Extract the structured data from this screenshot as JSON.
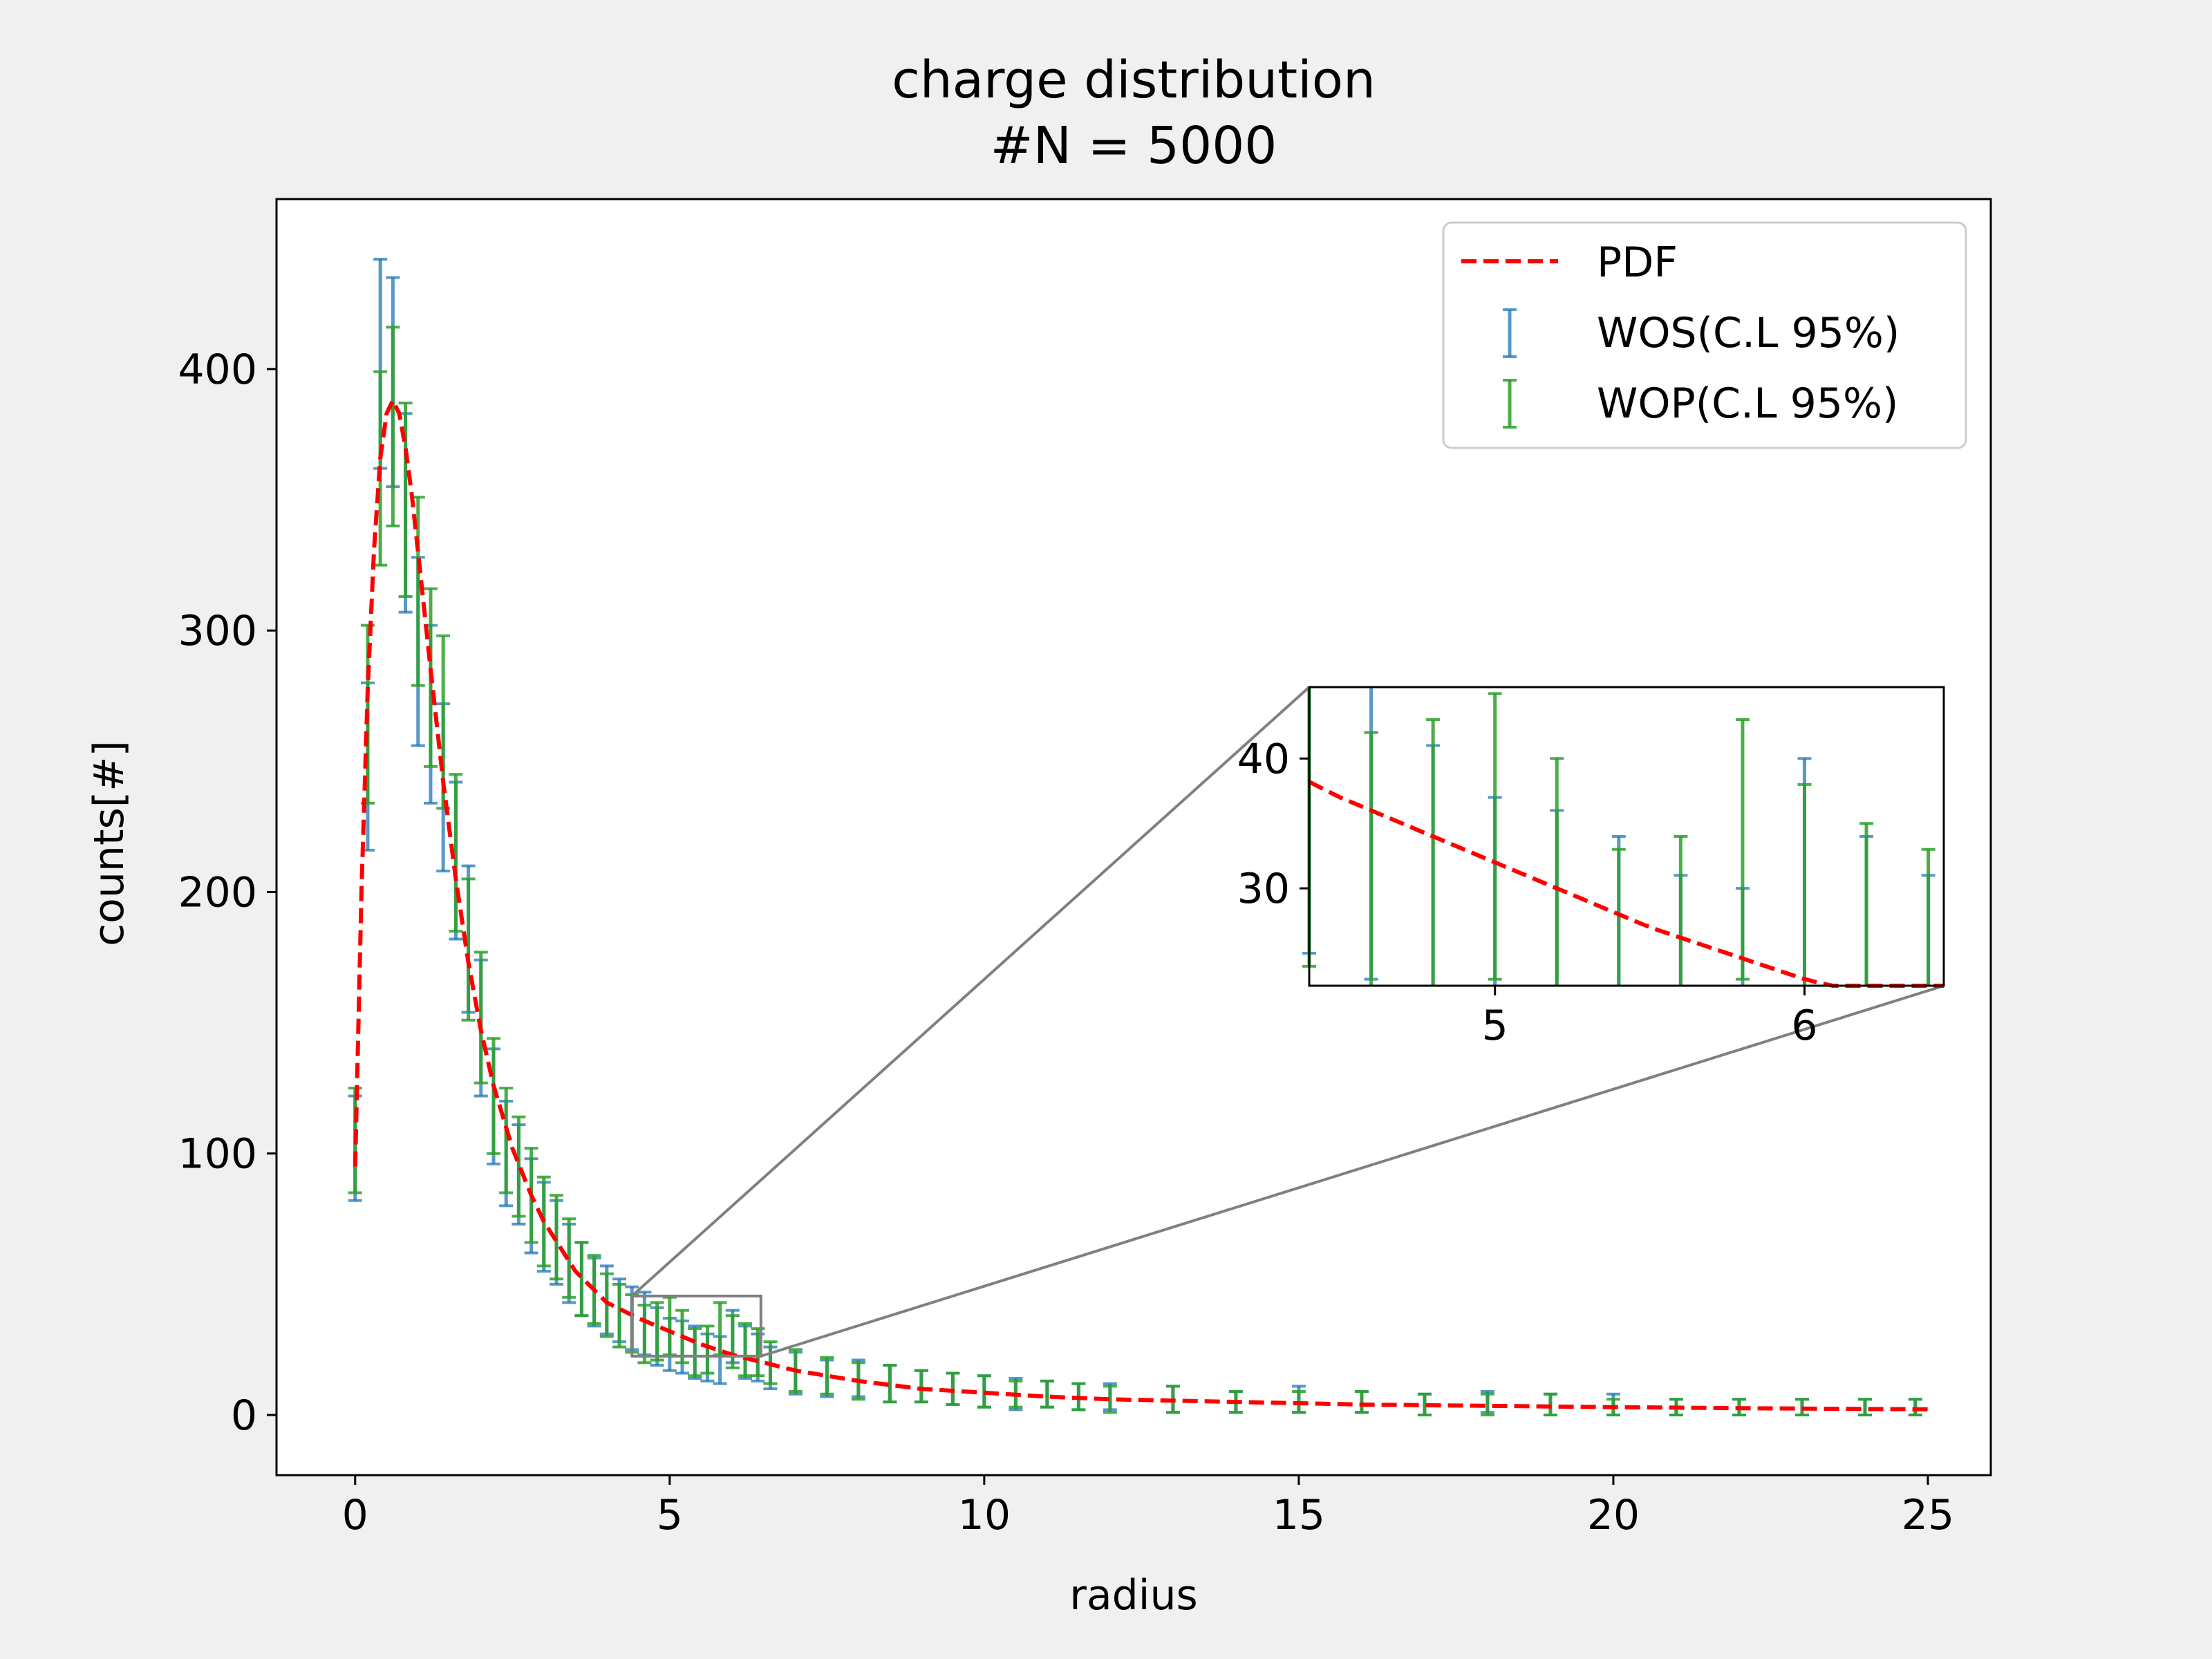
{
  "chart_data": {
    "type": "scatter",
    "title": "charge distribution",
    "subtitle": "#N = 5000",
    "xlabel": "radius",
    "ylabel": "counts[#]",
    "xlim": [
      -1.25,
      26.0
    ],
    "ylim": [
      -23,
      465
    ],
    "xticks": [
      0,
      5,
      10,
      15,
      20,
      25
    ],
    "yticks": [
      0,
      100,
      200,
      300,
      400
    ],
    "grid": false,
    "legend_position": "upper right",
    "pdf": {
      "name": "PDF",
      "color": "#ff0000",
      "style": "dashed",
      "x": [
        0,
        0.1,
        0.2,
        0.3,
        0.4,
        0.5,
        0.6,
        0.7,
        0.8,
        0.9,
        1.0,
        1.2,
        1.4,
        1.6,
        1.8,
        2.0,
        2.2,
        2.5,
        2.8,
        3.0,
        3.5,
        4.0,
        4.5,
        5.0,
        5.5,
        6.0,
        6.5,
        7,
        8,
        9,
        10,
        11,
        12,
        13,
        14,
        15,
        16,
        18,
        20,
        22,
        24,
        25
      ],
      "y": [
        95,
        200,
        278,
        331,
        366,
        383,
        388,
        383,
        370,
        352,
        330,
        285,
        242,
        205,
        173,
        147,
        126,
        102,
        84,
        74,
        55,
        43,
        37,
        32,
        27,
        23,
        20,
        17,
        13,
        10,
        8.5,
        7,
        6,
        5.5,
        5,
        4.5,
        4,
        3.5,
        3,
        2.6,
        2.3,
        2.2
      ]
    },
    "series": [
      {
        "name": "WOS(C.L 95%)",
        "color": "#1f77b4",
        "x": [
          0,
          0.2,
          0.4,
          0.6,
          0.8,
          1.0,
          1.2,
          1.4,
          1.6,
          1.8,
          2.0,
          2.2,
          2.4,
          2.6,
          2.8,
          3.0,
          3.2,
          3.4,
          3.6,
          3.8,
          4.0,
          4.2,
          4.4,
          4.6,
          4.8,
          5.0,
          5.2,
          5.4,
          5.6,
          5.8,
          6.0,
          6.2,
          6.4,
          6.6,
          7.0,
          7.5,
          8.0,
          8.5,
          9.0,
          9.5,
          10,
          10.5,
          11,
          11.5,
          12,
          13,
          14,
          15,
          16,
          17,
          18,
          19,
          20,
          21,
          22,
          23,
          24,
          24.8
        ],
        "y": [
          102,
          248,
          402,
          395,
          345,
          292,
          268,
          240,
          212,
          182,
          148,
          118,
          100,
          92,
          80,
          72,
          66,
          58,
          52,
          47,
          44,
          40,
          37,
          35,
          30,
          27,
          26,
          24,
          22,
          21,
          30,
          24,
          22,
          18,
          16,
          14,
          14,
          12,
          11,
          10,
          9,
          8,
          8,
          7,
          7,
          6,
          5,
          6,
          5,
          4,
          5,
          4,
          4,
          3,
          3,
          3,
          3,
          3
        ],
        "err": [
          20,
          32,
          40,
          40,
          38,
          36,
          34,
          32,
          30,
          28,
          26,
          22,
          20,
          19,
          18,
          17,
          16,
          15,
          14,
          13,
          13,
          12,
          12,
          12,
          11,
          10,
          10,
          10,
          9,
          9,
          10,
          10,
          9,
          8,
          8,
          7,
          7,
          7,
          6,
          6,
          6,
          6,
          5,
          5,
          5,
          5,
          4,
          5,
          4,
          4,
          4,
          4,
          4,
          3,
          3,
          3,
          3,
          3
        ]
      },
      {
        "name": "WOP(C.L 95%)",
        "color": "#2ca02c",
        "x": [
          0,
          0.2,
          0.4,
          0.6,
          0.8,
          1.0,
          1.2,
          1.4,
          1.6,
          1.8,
          2.0,
          2.2,
          2.4,
          2.6,
          2.8,
          3.0,
          3.2,
          3.4,
          3.6,
          3.8,
          4.0,
          4.2,
          4.4,
          4.6,
          4.8,
          5.0,
          5.2,
          5.4,
          5.6,
          5.8,
          6.0,
          6.2,
          6.4,
          6.6,
          7.0,
          7.5,
          8.0,
          8.5,
          9.0,
          9.5,
          10,
          10.5,
          11,
          11.5,
          12,
          13,
          14,
          15,
          16,
          17,
          18,
          19,
          20,
          21,
          22,
          23,
          24,
          24.8
        ],
        "y": [
          105,
          268,
          362,
          378,
          350,
          315,
          282,
          265,
          215,
          178,
          152,
          122,
          105,
          95,
          84,
          74,
          68,
          60,
          52,
          48,
          42,
          38,
          35,
          31,
          32,
          34,
          30,
          24,
          25,
          33,
          28,
          25,
          24,
          20,
          17,
          15,
          13,
          12,
          11,
          10,
          9,
          8,
          8,
          7,
          6,
          6,
          5,
          5,
          5,
          4,
          4,
          4,
          3,
          3,
          3,
          3,
          3,
          3
        ],
        "err": [
          20,
          34,
          37,
          38,
          37,
          36,
          34,
          33,
          30,
          27,
          25,
          22,
          20,
          19,
          18,
          17,
          16,
          15,
          14,
          13,
          12,
          12,
          11,
          11,
          11,
          11,
          10,
          9,
          9,
          10,
          10,
          10,
          9,
          8,
          8,
          7,
          7,
          7,
          6,
          6,
          6,
          5,
          5,
          5,
          5,
          5,
          4,
          4,
          4,
          4,
          4,
          4,
          3,
          3,
          3,
          3,
          3,
          3
        ]
      }
    ],
    "inset": {
      "xlim": [
        4.4,
        6.45
      ],
      "ylim": [
        22.5,
        45.5
      ],
      "xticks": [
        5,
        6
      ],
      "yticks": [
        30,
        40
      ]
    }
  }
}
